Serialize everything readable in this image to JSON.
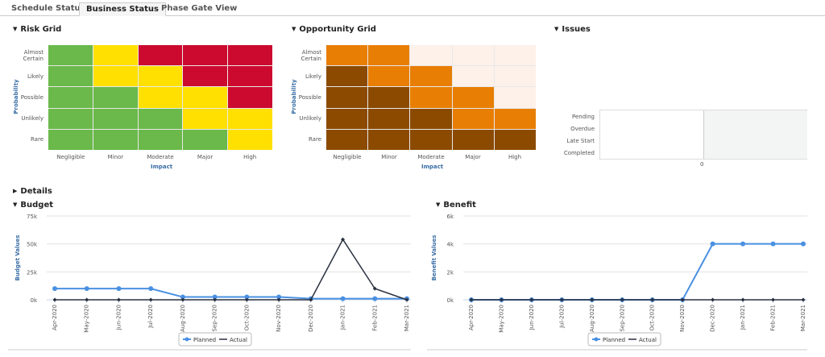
{
  "tabs": [
    {
      "label": "Schedule Status",
      "active": false
    },
    {
      "label": "Business Status",
      "active": true
    },
    {
      "label": "Phase Gate View",
      "active": false
    }
  ],
  "colors": {
    "green": "#6ab94a",
    "yellow": "#ffe000",
    "red": "#cc0a2f",
    "light": "#fdf1ea",
    "orange": "#e87e04",
    "brown": "#8b4a00",
    "planned": "#4a90e2",
    "actual": "#2a3140"
  },
  "risk_grid": {
    "title": "Risk Grid",
    "ylabel": "Probability",
    "xlabel": "Impact",
    "rows": [
      "Almost Certain",
      "Likely",
      "Possible",
      "Unlikely",
      "Rare"
    ],
    "cols": [
      "Negligible",
      "Minor",
      "Moderate",
      "Major",
      "High"
    ],
    "cells": [
      [
        "green",
        "yellow",
        "red",
        "red",
        "red"
      ],
      [
        "green",
        "yellow",
        "yellow",
        "red",
        "red"
      ],
      [
        "green",
        "green",
        "yellow",
        "yellow",
        "red"
      ],
      [
        "green",
        "green",
        "green",
        "yellow",
        "yellow"
      ],
      [
        "green",
        "green",
        "green",
        "green",
        "yellow"
      ]
    ]
  },
  "opportunity_grid": {
    "title": "Opportunity Grid",
    "ylabel": "Probability",
    "xlabel": "Impact",
    "rows": [
      "Almost Certain",
      "Likely",
      "Possible",
      "Unlikely",
      "Rare"
    ],
    "cols": [
      "Negligible",
      "Minor",
      "Moderate",
      "Major",
      "High"
    ],
    "cells": [
      [
        "orange",
        "orange",
        "light",
        "light",
        "light"
      ],
      [
        "brown",
        "orange",
        "orange",
        "light",
        "light"
      ],
      [
        "brown",
        "brown",
        "orange",
        "orange",
        "light"
      ],
      [
        "brown",
        "brown",
        "brown",
        "orange",
        "orange"
      ],
      [
        "brown",
        "brown",
        "brown",
        "brown",
        "brown"
      ]
    ]
  },
  "issues": {
    "title": "Issues",
    "categories": [
      "Pending",
      "Overdue",
      "Late Start",
      "Completed"
    ],
    "tick": "0"
  },
  "details": {
    "title": "Details"
  },
  "chart_data": [
    {
      "type": "line",
      "title": "Budget",
      "ylabel": "Budget Values",
      "ylim": [
        0,
        75000
      ],
      "yticks": [
        "0k",
        "25k",
        "50k",
        "75k"
      ],
      "x": [
        "Apr-2020",
        "May-2020",
        "Jun-2020",
        "Jul-2020",
        "Aug-2020",
        "Sep-2020",
        "Oct-2020",
        "Nov-2020",
        "Dec-2020",
        "Jan-2021",
        "Feb-2021",
        "Mar-2021"
      ],
      "series": [
        {
          "name": "Planned",
          "values": [
            10000,
            10000,
            10000,
            10000,
            2500,
            2500,
            2500,
            2500,
            1000,
            1000,
            1000,
            1000
          ]
        },
        {
          "name": "Actual",
          "values": [
            0,
            0,
            0,
            0,
            0,
            0,
            0,
            0,
            0,
            54000,
            10000,
            0
          ]
        }
      ],
      "legend": "bottom",
      "grid": true
    },
    {
      "type": "line",
      "title": "Benefit",
      "ylabel": "Benefit Values",
      "ylim": [
        0,
        6000
      ],
      "yticks": [
        "0k",
        "2k",
        "4k",
        "6k"
      ],
      "x": [
        "Apr-2020",
        "May-2020",
        "Jun-2020",
        "Jul-2020",
        "Aug-2020",
        "Sep-2020",
        "Oct-2020",
        "Nov-2020",
        "Dec-2020",
        "Jan-2021",
        "Feb-2021",
        "Mar-2021"
      ],
      "series": [
        {
          "name": "Planned",
          "values": [
            0,
            0,
            0,
            0,
            0,
            0,
            0,
            0,
            4000,
            4000,
            4000,
            4000
          ]
        },
        {
          "name": "Actual",
          "values": [
            0,
            0,
            0,
            0,
            0,
            0,
            0,
            0,
            0,
            0,
            0,
            0
          ]
        }
      ],
      "legend": "bottom",
      "grid": true
    }
  ]
}
